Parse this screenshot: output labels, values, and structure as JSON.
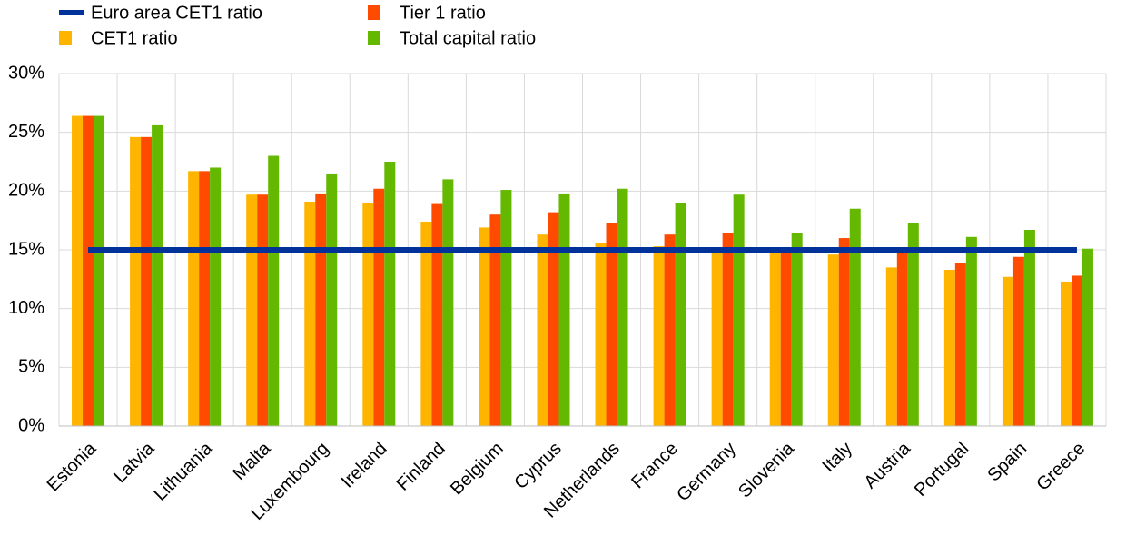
{
  "chart_data": {
    "type": "bar",
    "categories": [
      "Estonia",
      "Latvia",
      "Lithuania",
      "Malta",
      "Luxembourg",
      "Ireland",
      "Finland",
      "Belgium",
      "Cyprus",
      "Netherlands",
      "France",
      "Germany",
      "Slovenia",
      "Italy",
      "Austria",
      "Portugal",
      "Spain",
      "Greece"
    ],
    "series": [
      {
        "name": "Euro area CET1 ratio",
        "type": "line",
        "color": "#003299",
        "values": [
          15.0,
          15.0,
          15.0,
          15.0,
          15.0,
          15.0,
          15.0,
          15.0,
          15.0,
          15.0,
          15.0,
          15.0,
          15.0,
          15.0,
          15.0,
          15.0,
          15.0,
          15.0
        ]
      },
      {
        "name": "CET1 ratio",
        "type": "bar",
        "color": "#FFB400",
        "values": [
          26.4,
          24.6,
          21.7,
          19.7,
          19.1,
          19.0,
          17.4,
          16.9,
          16.3,
          15.6,
          15.3,
          15.2,
          14.9,
          14.6,
          13.5,
          13.3,
          12.7,
          12.3
        ]
      },
      {
        "name": "Tier 1 ratio",
        "type": "bar",
        "color": "#FF4B00",
        "values": [
          26.4,
          24.6,
          21.7,
          19.7,
          19.8,
          20.2,
          18.9,
          18.0,
          18.2,
          17.3,
          16.3,
          16.4,
          14.9,
          16.0,
          15.0,
          13.9,
          14.4,
          12.8
        ]
      },
      {
        "name": "Total capital ratio",
        "type": "bar",
        "color": "#65B800",
        "values": [
          26.4,
          25.6,
          22.0,
          23.0,
          21.5,
          22.5,
          21.0,
          20.1,
          19.8,
          20.2,
          19.0,
          19.7,
          16.4,
          18.5,
          17.3,
          16.1,
          16.7,
          15.1
        ]
      }
    ],
    "ylim": [
      0,
      30
    ],
    "yticks": [
      {
        "value": 0,
        "label": "0%"
      },
      {
        "value": 5,
        "label": "5%"
      },
      {
        "value": 10,
        "label": "10%"
      },
      {
        "value": 15,
        "label": "15%"
      },
      {
        "value": 20,
        "label": "20%"
      },
      {
        "value": 25,
        "label": "25%"
      },
      {
        "value": 30,
        "label": "30%"
      }
    ],
    "grid": true
  }
}
